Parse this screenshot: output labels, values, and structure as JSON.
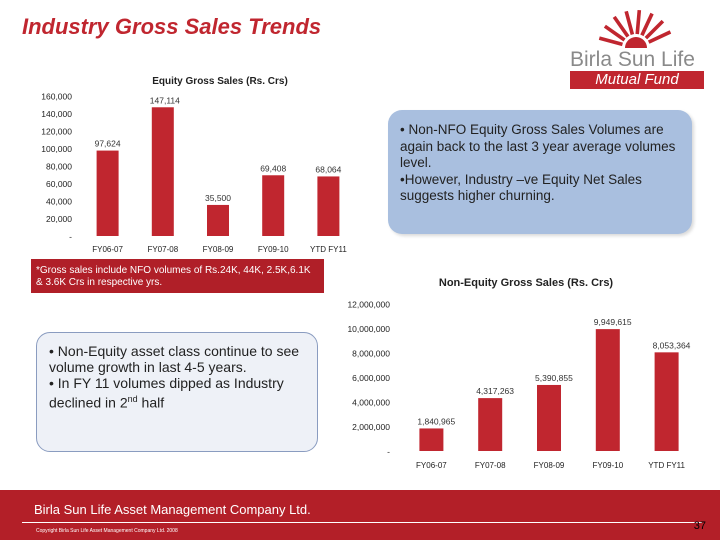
{
  "header": {
    "title": "Industry Gross Sales Trends"
  },
  "logo": {
    "name": "Birla Sun Life",
    "sub": "Mutual Fund"
  },
  "chart_data": [
    {
      "type": "bar",
      "title": "Equity Gross Sales (Rs. Crs)",
      "categories": [
        "FY06-07",
        "FY07-08",
        "FY08-09",
        "FY09-10",
        "YTD FY11"
      ],
      "values": [
        97624,
        147114,
        35500,
        69408,
        68064
      ],
      "value_labels": [
        "97,624",
        "147,114",
        "35,500",
        "69,408",
        "68,064"
      ],
      "yticks": [
        "-",
        "20,000",
        "40,000",
        "60,000",
        "80,000",
        "100,000",
        "120,000",
        "140,000",
        "160,000"
      ],
      "ylim": [
        0,
        160000
      ],
      "bar_color": "#c0262f",
      "grid": false
    },
    {
      "type": "bar",
      "title": "Non-Equity Gross Sales (Rs. Crs)",
      "categories": [
        "FY06-07",
        "FY07-08",
        "FY08-09",
        "FY09-10",
        "YTD FY11"
      ],
      "values": [
        1840965,
        4317263,
        5390855,
        9949615,
        8053364
      ],
      "value_labels": [
        "1,840,965",
        "4,317,263",
        "5,390,855",
        "9,949,615",
        "8,053,364"
      ],
      "yticks": [
        "-",
        "2,000,000",
        "4,000,000",
        "6,000,000",
        "8,000,000",
        "10,000,000",
        "12,000,000"
      ],
      "ylim": [
        0,
        12000000
      ],
      "bar_color": "#c0262f",
      "grid": false
    }
  ],
  "callouts": {
    "equity": {
      "line1": "• Non-NFO Equity Gross Sales Volumes are again back to the last 3 year average volumes level.",
      "line2": "•However, Industry –ve Equity Net Sales suggests higher churning."
    },
    "non_equity": {
      "line1": "• Non-Equity asset class continue to see volume growth in last 4-5 years.",
      "line2_pre": "• In FY 11 volumes dipped as Industry declined in 2",
      "line2_sup": "nd",
      "line2_post": " half"
    }
  },
  "note": "*Gross sales include NFO volumes of Rs.24K, 44K, 2.5K,6.1K & 3.6K Crs in respective yrs.",
  "footer": {
    "company": "Birla Sun Life Asset Management Company Ltd.",
    "copyright": "Copyright Birla Sun Life Asset Management Company Ltd. 2008",
    "page": "37"
  },
  "colors": {
    "brand": "#c0262f",
    "callout_blue": "#a9bfdf"
  }
}
